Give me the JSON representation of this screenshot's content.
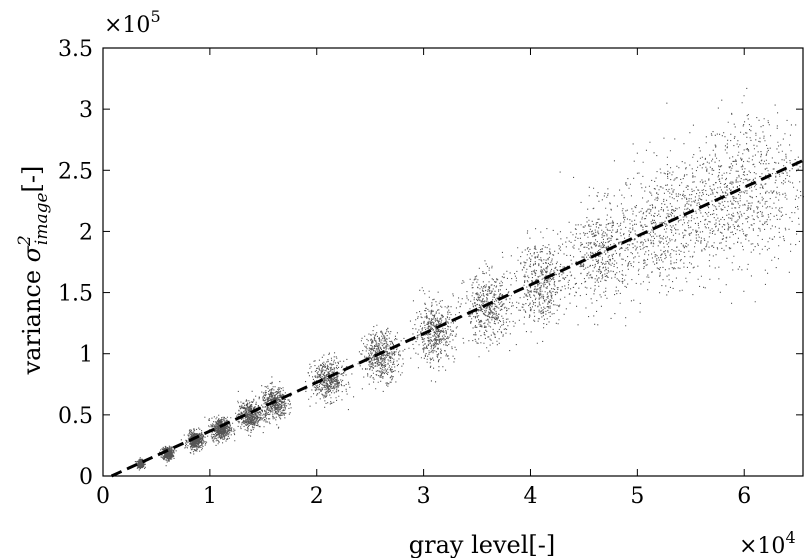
{
  "chart_data": {
    "type": "scatter",
    "title": "",
    "xlabel": "gray level[-]",
    "ylabel": {
      "prefix": "variance ",
      "symbol": "σ",
      "superscript": "2",
      "subscript": "image",
      "suffix": "[-]"
    },
    "xlim": [
      0,
      65500
    ],
    "ylim": [
      0,
      350000
    ],
    "x_ticks": [
      0,
      10000,
      20000,
      30000,
      40000,
      50000,
      60000
    ],
    "x_tick_labels": [
      "0",
      "1",
      "2",
      "3",
      "4",
      "5",
      "6"
    ],
    "y_ticks": [
      0,
      50000,
      100000,
      150000,
      200000,
      250000,
      300000,
      350000
    ],
    "y_tick_labels": [
      "0",
      "0.5",
      "1",
      "1.5",
      "2",
      "2.5",
      "3",
      "3.5"
    ],
    "x_multiplier": {
      "base": "×10",
      "exponent": "4"
    },
    "y_multiplier": {
      "base": "×10",
      "exponent": "5"
    },
    "grid": false,
    "point_color": "#555555",
    "fit_line_color": "#000000",
    "fit_line": {
      "style": "dashed",
      "x": [
        800,
        65500
      ],
      "y": [
        0,
        258000
      ]
    },
    "clusters": [
      {
        "x": 3500,
        "y": 10500,
        "x_spread": 150,
        "y_spread": 1500
      },
      {
        "x": 6000,
        "y": 19000,
        "x_spread": 250,
        "y_spread": 2500
      },
      {
        "x": 8600,
        "y": 29500,
        "x_spread": 350,
        "y_spread": 3500
      },
      {
        "x": 11000,
        "y": 39000,
        "x_spread": 450,
        "y_spread": 4500
      },
      {
        "x": 13700,
        "y": 50000,
        "x_spread": 550,
        "y_spread": 5500
      },
      {
        "x": 16000,
        "y": 60000,
        "x_spread": 600,
        "y_spread": 6500
      },
      {
        "x": 21000,
        "y": 79000,
        "x_spread": 750,
        "y_spread": 8000
      },
      {
        "x": 26000,
        "y": 99000,
        "x_spread": 850,
        "y_spread": 10000
      },
      {
        "x": 31000,
        "y": 118000,
        "x_spread": 950,
        "y_spread": 12000
      },
      {
        "x": 36000,
        "y": 137000,
        "x_spread": 1100,
        "y_spread": 14000
      },
      {
        "x": 41000,
        "y": 159000,
        "x_spread": 1200,
        "y_spread": 17000
      },
      {
        "x": 46500,
        "y": 182000,
        "x_spread": 1600,
        "y_spread": 21000
      },
      {
        "x": 52000,
        "y": 203000,
        "x_spread": 2000,
        "y_spread": 24000
      },
      {
        "x": 57000,
        "y": 222000,
        "x_spread": 2400,
        "y_spread": 28000
      },
      {
        "x": 61500,
        "y": 238000,
        "x_spread": 2600,
        "y_spread": 32000
      }
    ]
  }
}
